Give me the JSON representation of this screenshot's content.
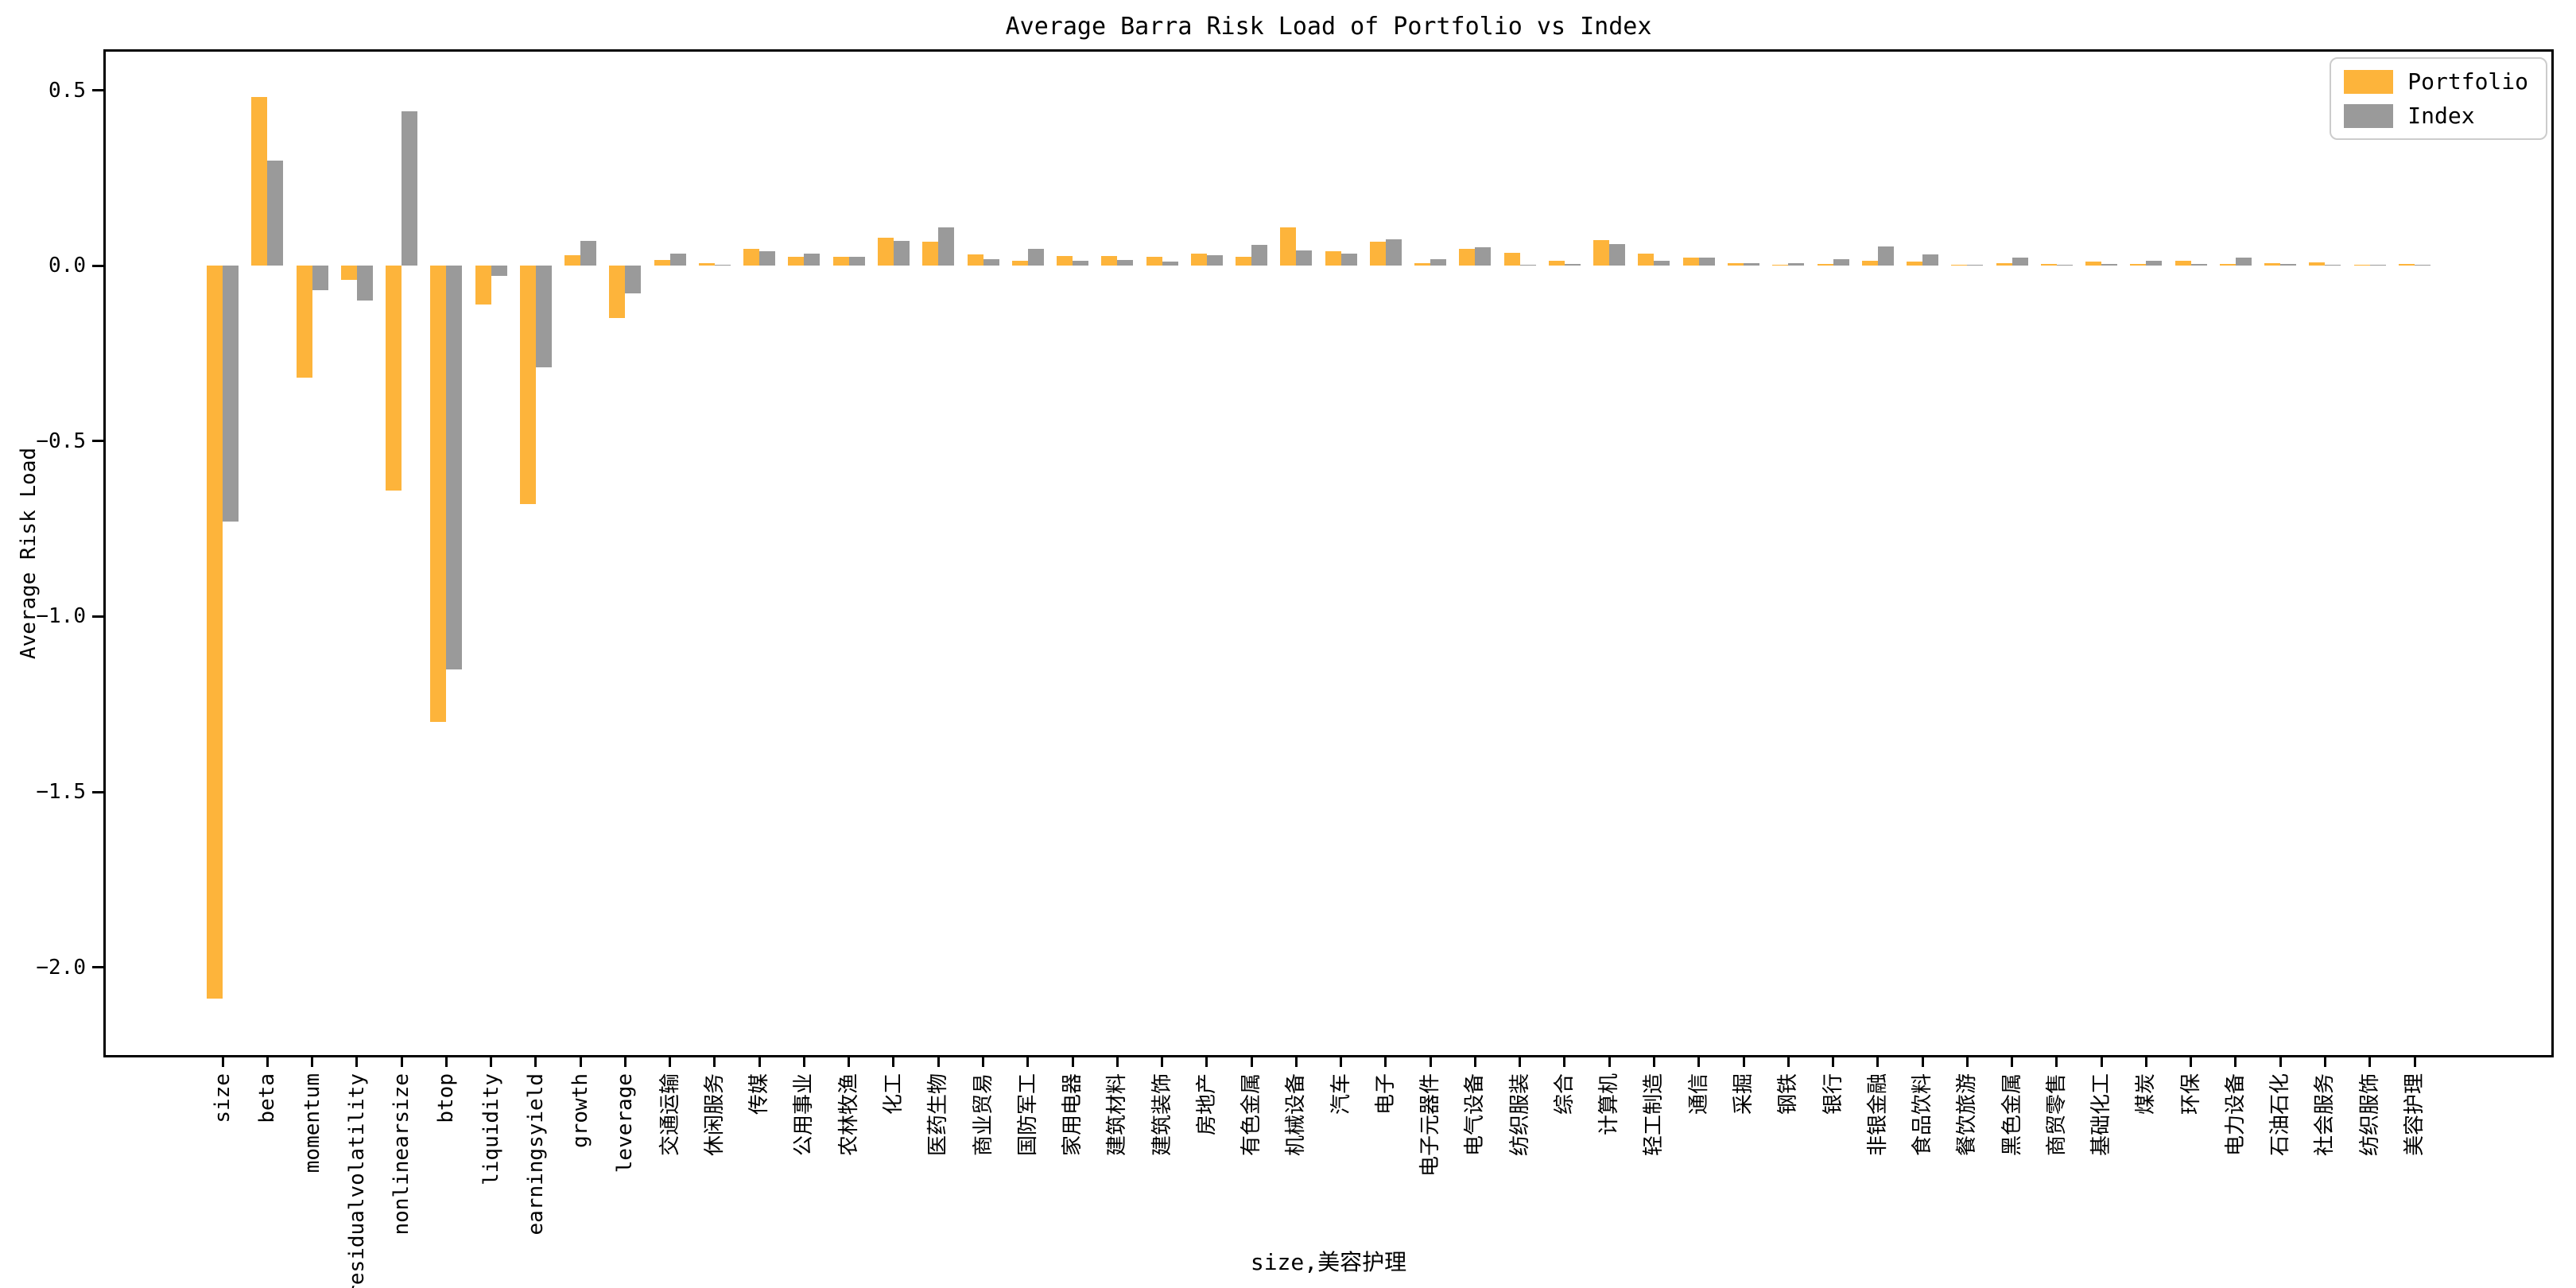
{
  "figure": {
    "title": "Average Barra Risk Load of Portfolio vs Index",
    "x_axis_label": "size,美容护理",
    "y_axis_label": "Average Risk Load"
  },
  "colors": {
    "portfolio": "#FDB43B",
    "index": "#9A9A9A",
    "axis": "#000000",
    "legend_border": "#cccccc",
    "background": "#ffffff"
  },
  "chart_data": {
    "type": "bar",
    "title": "Average Barra Risk Load of Portfolio vs Index",
    "xlabel": "size,美容护理",
    "ylabel": "Average Risk Load",
    "ylim": [
      -2.25,
      0.61
    ],
    "yticks": [
      0.5,
      0.0,
      -0.5,
      -1.0,
      -1.5,
      -2.0
    ],
    "grid": false,
    "legend_position": "upper right",
    "categories": [
      "size",
      "beta",
      "momentum",
      "residualvolatility",
      "nonlinearsize",
      "btop",
      "liquidity",
      "earningsyield",
      "growth",
      "leverage",
      "交通运输",
      "休闲服务",
      "传媒",
      "公用事业",
      "农林牧渔",
      "化工",
      "医药生物",
      "商业贸易",
      "国防军工",
      "家用电器",
      "建筑材料",
      "建筑装饰",
      "房地产",
      "有色金属",
      "机械设备",
      "汽车",
      "电子",
      "电子元器件",
      "电气设备",
      "纺织服装",
      "综合",
      "计算机",
      "轻工制造",
      "通信",
      "采掘",
      "钢铁",
      "银行",
      "非银金融",
      "食品饮料",
      "餐饮旅游",
      "黑色金属",
      "商贸零售",
      "基础化工",
      "煤炭",
      "环保",
      "电力设备",
      "石油石化",
      "社会服务",
      "纺织服饰",
      "美容护理"
    ],
    "series": [
      {
        "name": "Portfolio",
        "color": "#FDB43B",
        "values": [
          -2.09,
          0.48,
          -0.32,
          -0.04,
          -0.64,
          -1.3,
          -0.11,
          -0.68,
          0.03,
          -0.15,
          0.017,
          0.007,
          0.048,
          0.026,
          0.025,
          0.08,
          0.068,
          0.032,
          0.014,
          0.028,
          0.027,
          0.025,
          0.035,
          0.026,
          0.11,
          0.042,
          0.068,
          0.008,
          0.048,
          0.037,
          0.014,
          0.074,
          0.034,
          0.024,
          0.008,
          0.002,
          0.004,
          0.013,
          0.012,
          0.001,
          0.007,
          0.004,
          0.012,
          0.005,
          0.014,
          0.006,
          0.008,
          0.01,
          0.003,
          0.005
        ]
      },
      {
        "name": "Index",
        "color": "#9A9A9A",
        "values": [
          -0.73,
          0.3,
          -0.07,
          -0.1,
          0.44,
          -1.15,
          -0.03,
          -0.29,
          0.07,
          -0.08,
          0.034,
          0.003,
          0.042,
          0.034,
          0.025,
          0.071,
          0.11,
          0.018,
          0.048,
          0.013,
          0.016,
          0.012,
          0.029,
          0.06,
          0.043,
          0.035,
          0.075,
          0.019,
          0.052,
          0.002,
          0.006,
          0.061,
          0.014,
          0.022,
          0.008,
          0.008,
          0.018,
          0.054,
          0.033,
          0.001,
          0.023,
          0.001,
          0.004,
          0.013,
          0.005,
          0.022,
          0.006,
          0.001,
          0.001,
          0.001
        ]
      }
    ]
  }
}
